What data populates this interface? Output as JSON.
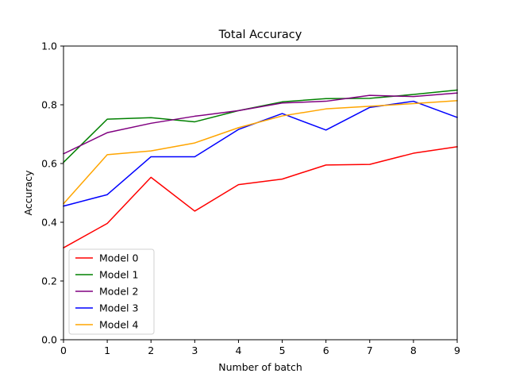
{
  "chart_data": {
    "type": "line",
    "title": "Total Accuracy",
    "xlabel": "Number of batch",
    "ylabel": "Accuracy",
    "xlim": [
      0,
      9
    ],
    "ylim": [
      0.0,
      1.0
    ],
    "x": [
      0,
      1,
      2,
      3,
      4,
      5,
      6,
      7,
      8,
      9
    ],
    "xticks": [
      "0",
      "1",
      "2",
      "3",
      "4",
      "5",
      "6",
      "7",
      "8",
      "9"
    ],
    "yticks": [
      {
        "value": 0.0,
        "label": "0.0"
      },
      {
        "value": 0.2,
        "label": "0.2"
      },
      {
        "value": 0.4,
        "label": "0.4"
      },
      {
        "value": 0.6,
        "label": "0.6"
      },
      {
        "value": 0.8,
        "label": "0.8"
      },
      {
        "value": 1.0,
        "label": "1.0"
      }
    ],
    "grid": false,
    "legend_position": "lower-left",
    "series": [
      {
        "name": "Model 0",
        "color": "#ff0000",
        "values": [
          0.313,
          0.396,
          0.553,
          0.438,
          0.528,
          0.547,
          0.595,
          0.597,
          0.635,
          0.657
        ]
      },
      {
        "name": "Model 1",
        "color": "#008000",
        "values": [
          0.604,
          0.751,
          0.756,
          0.742,
          0.78,
          0.81,
          0.821,
          0.822,
          0.835,
          0.85
        ]
      },
      {
        "name": "Model 2",
        "color": "#800080",
        "values": [
          0.633,
          0.705,
          0.737,
          0.761,
          0.78,
          0.806,
          0.812,
          0.832,
          0.828,
          0.84
        ]
      },
      {
        "name": "Model 3",
        "color": "#0000ff",
        "values": [
          0.455,
          0.494,
          0.623,
          0.623,
          0.716,
          0.77,
          0.714,
          0.791,
          0.812,
          0.757
        ]
      },
      {
        "name": "Model 4",
        "color": "#ffa500",
        "values": [
          0.463,
          0.63,
          0.643,
          0.67,
          0.722,
          0.762,
          0.786,
          0.795,
          0.804,
          0.814
        ]
      }
    ]
  }
}
